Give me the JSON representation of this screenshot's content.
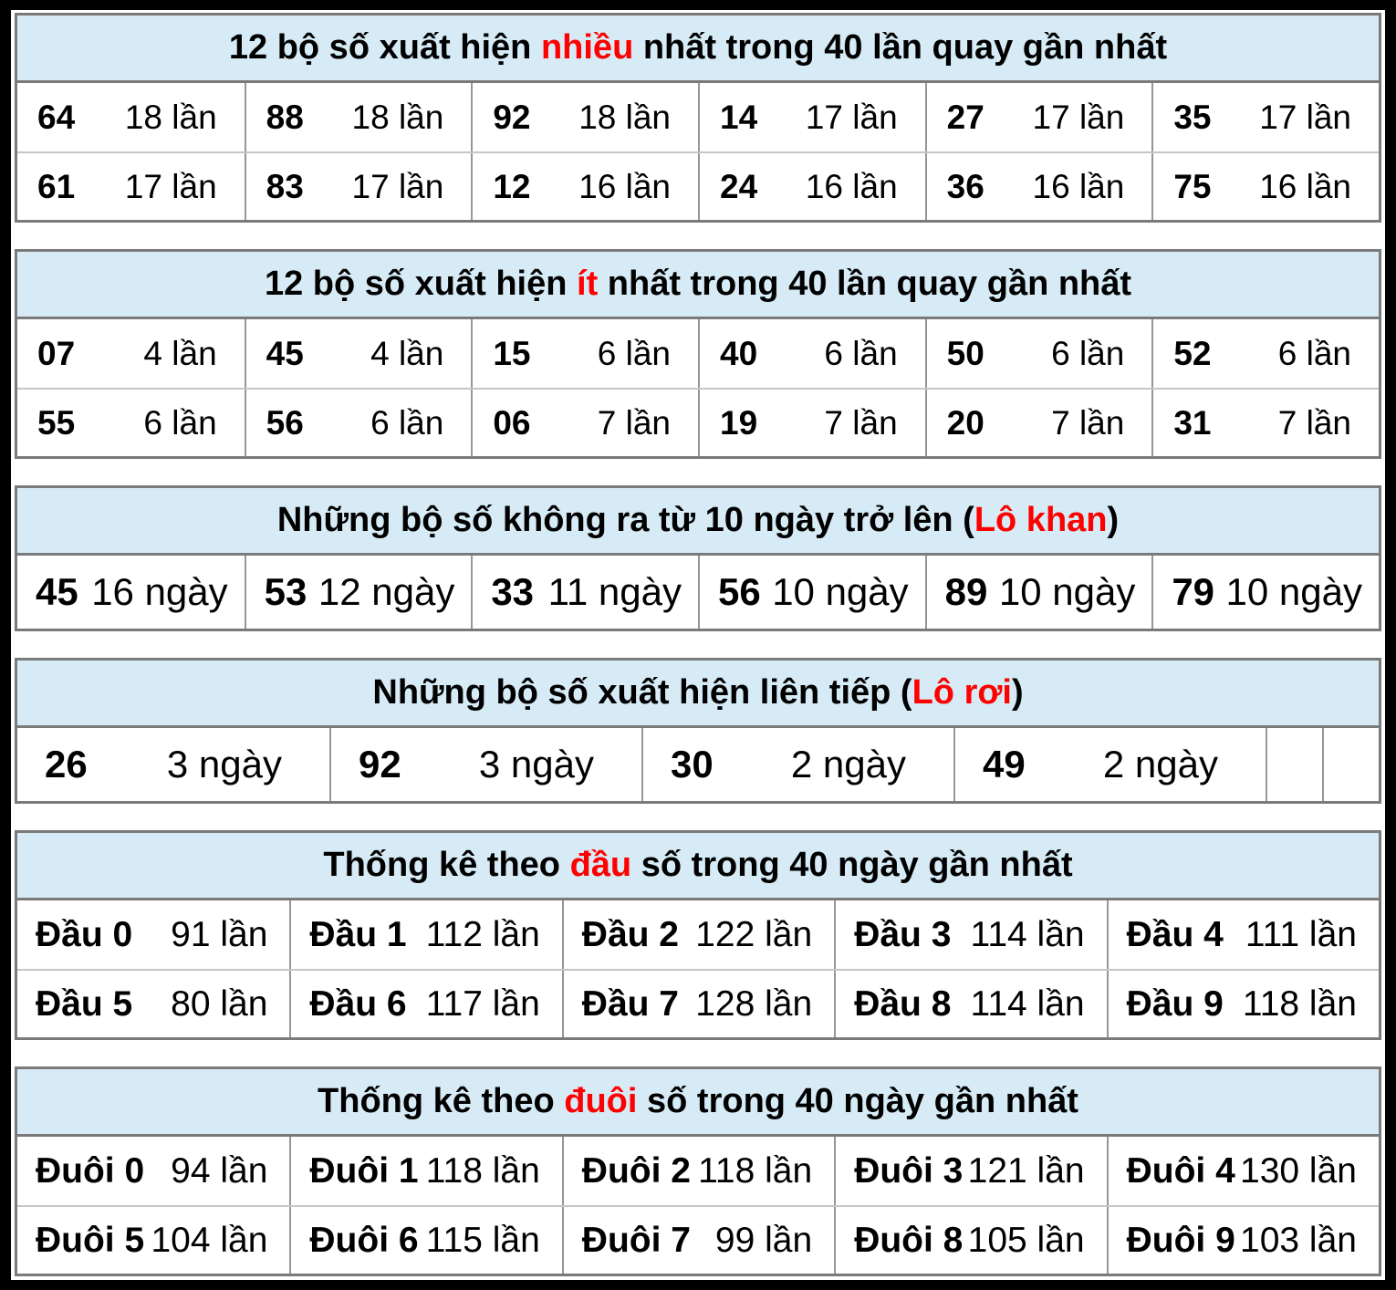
{
  "colors": {
    "header_background": "#d6ebf5",
    "accent_red": "#fe0000",
    "table_border": "#7a7a7a",
    "cell_divider": "#969696",
    "row_divider": "#c6c6c6",
    "text": "#000000",
    "page_frame": "#000000",
    "background": "#ffffff"
  },
  "chart_data": [
    {
      "type": "table",
      "title": "12 bộ số xuất hiện nhiều nhất trong 40 lần quay gần nhất",
      "title_parts": {
        "pre": "12 bộ số xuất hiện ",
        "highlight": "nhiều",
        "post": " nhất trong 40 lần quay gần nhất"
      },
      "layout": {
        "columns": 6,
        "rows": 2,
        "header": "light-blue",
        "highlight_color": "#fe0000"
      },
      "cells": [
        [
          {
            "label": "64",
            "value": "18 lần"
          },
          {
            "label": "88",
            "value": "18 lần"
          },
          {
            "label": "92",
            "value": "18 lần"
          },
          {
            "label": "14",
            "value": "17 lần"
          },
          {
            "label": "27",
            "value": "17 lần"
          },
          {
            "label": "35",
            "value": "17 lần"
          }
        ],
        [
          {
            "label": "61",
            "value": "17 lần"
          },
          {
            "label": "83",
            "value": "17 lần"
          },
          {
            "label": "12",
            "value": "16 lần"
          },
          {
            "label": "24",
            "value": "16 lần"
          },
          {
            "label": "36",
            "value": "16 lần"
          },
          {
            "label": "75",
            "value": "16 lần"
          }
        ]
      ]
    },
    {
      "type": "table",
      "title": "12 bộ số xuất hiện ít nhất trong 40 lần quay gần nhất",
      "title_parts": {
        "pre": "12 bộ số xuất hiện ",
        "highlight": "ít",
        "post": " nhất trong 40 lần quay gần nhất"
      },
      "layout": {
        "columns": 6,
        "rows": 2,
        "header": "light-blue",
        "highlight_color": "#fe0000"
      },
      "cells": [
        [
          {
            "label": "07",
            "value": "4 lần"
          },
          {
            "label": "45",
            "value": "4 lần"
          },
          {
            "label": "15",
            "value": "6 lần"
          },
          {
            "label": "40",
            "value": "6 lần"
          },
          {
            "label": "50",
            "value": "6 lần"
          },
          {
            "label": "52",
            "value": "6 lần"
          }
        ],
        [
          {
            "label": "55",
            "value": "6 lần"
          },
          {
            "label": "56",
            "value": "6 lần"
          },
          {
            "label": "06",
            "value": "7 lần"
          },
          {
            "label": "19",
            "value": "7 lần"
          },
          {
            "label": "20",
            "value": "7 lần"
          },
          {
            "label": "31",
            "value": "7 lần"
          }
        ]
      ]
    },
    {
      "type": "table",
      "title": "Những bộ số không ra từ 10 ngày trở lên (Lô khan)",
      "title_parts": {
        "pre": "Những bộ số không ra từ 10 ngày trở lên (",
        "highlight": "Lô khan",
        "post": ")"
      },
      "layout": {
        "columns": 6,
        "rows": 1,
        "header": "light-blue",
        "highlight_color": "#fe0000"
      },
      "cells": [
        [
          {
            "label": "45",
            "value": "16 ngày"
          },
          {
            "label": "53",
            "value": "12 ngày"
          },
          {
            "label": "33",
            "value": "11 ngày"
          },
          {
            "label": "56",
            "value": "10 ngày"
          },
          {
            "label": "89",
            "value": "10 ngày"
          },
          {
            "label": "79",
            "value": "10 ngày"
          }
        ]
      ]
    },
    {
      "type": "table",
      "title": "Những bộ số xuất hiện liên tiếp (Lô rơi)",
      "title_parts": {
        "pre": "Những bộ số xuất hiện liên tiếp (",
        "highlight": "Lô rơi",
        "post": ")"
      },
      "layout": {
        "columns": 6,
        "rows": 1,
        "header": "light-blue",
        "highlight_color": "#fe0000",
        "note": "4 wide cells + 2 narrow empty cells"
      },
      "cells": [
        [
          {
            "label": "26",
            "value": "3 ngày"
          },
          {
            "label": "92",
            "value": "3 ngày"
          },
          {
            "label": "30",
            "value": "2 ngày"
          },
          {
            "label": "49",
            "value": "2 ngày"
          },
          {
            "label": "",
            "value": ""
          },
          {
            "label": "",
            "value": ""
          }
        ]
      ]
    },
    {
      "type": "table",
      "title": "Thống kê theo đầu số trong 40 ngày gần nhất",
      "title_parts": {
        "pre": "Thống kê theo ",
        "highlight": "đầu",
        "post": " số trong 40 ngày gần nhất"
      },
      "layout": {
        "columns": 5,
        "rows": 2,
        "header": "light-blue",
        "highlight_color": "#fe0000"
      },
      "cells": [
        [
          {
            "label": "Đầu 0",
            "value": "91 lần"
          },
          {
            "label": "Đầu 1",
            "value": "112 lần"
          },
          {
            "label": "Đầu 2",
            "value": "122 lần"
          },
          {
            "label": "Đầu 3",
            "value": "114 lần"
          },
          {
            "label": "Đầu 4",
            "value": "111 lần"
          }
        ],
        [
          {
            "label": "Đầu 5",
            "value": "80 lần"
          },
          {
            "label": "Đầu 6",
            "value": "117 lần"
          },
          {
            "label": "Đầu 7",
            "value": "128 lần"
          },
          {
            "label": "Đầu 8",
            "value": "114 lần"
          },
          {
            "label": "Đầu 9",
            "value": "118 lần"
          }
        ]
      ]
    },
    {
      "type": "table",
      "title": "Thống kê theo đuôi số trong 40 ngày gần nhất",
      "title_parts": {
        "pre": "Thống kê theo ",
        "highlight": "đuôi",
        "post": " số trong 40 ngày gần nhất"
      },
      "layout": {
        "columns": 5,
        "rows": 2,
        "header": "light-blue",
        "highlight_color": "#fe0000"
      },
      "cells": [
        [
          {
            "label": "Đuôi 0",
            "value": "94 lần"
          },
          {
            "label": "Đuôi 1",
            "value": "118 lần"
          },
          {
            "label": "Đuôi 2",
            "value": "118 lần"
          },
          {
            "label": "Đuôi 3",
            "value": "121 lần"
          },
          {
            "label": "Đuôi 4",
            "value": "130 lần"
          }
        ],
        [
          {
            "label": "Đuôi 5",
            "value": "104 lần"
          },
          {
            "label": "Đuôi 6",
            "value": "115 lần"
          },
          {
            "label": "Đuôi 7",
            "value": "99 lần"
          },
          {
            "label": "Đuôi 8",
            "value": "105 lần"
          },
          {
            "label": "Đuôi 9",
            "value": "103 lần"
          }
        ]
      ]
    }
  ]
}
